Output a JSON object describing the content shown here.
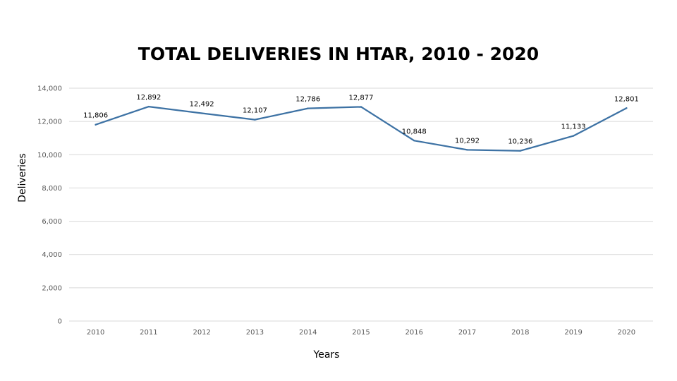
{
  "chart_data": {
    "type": "line",
    "title": "TOTAL DELIVERIES IN HTAR, 2010 - 2020",
    "xlabel": "Years",
    "ylabel": "Deliveries",
    "categories": [
      "2010",
      "2011",
      "2012",
      "2013",
      "2014",
      "2015",
      "2016",
      "2017",
      "2018",
      "2019",
      "2020"
    ],
    "values": [
      11806,
      12892,
      12492,
      12107,
      12786,
      12877,
      10848,
      10292,
      10236,
      11133,
      12801
    ],
    "data_labels": [
      "11,806",
      "12,892",
      "12,492",
      "12,107",
      "12,786",
      "12,877",
      "10,848",
      "10,292",
      "10,236",
      "11,133",
      "12,801"
    ],
    "y_ticks": [
      "0",
      "2,000",
      "4,000",
      "6,000",
      "8,000",
      "10,000",
      "12,000",
      "14,000"
    ],
    "ylim": [
      0,
      14000
    ],
    "grid": "horizontal",
    "legend": "none",
    "line_color": "#3d72a4"
  }
}
